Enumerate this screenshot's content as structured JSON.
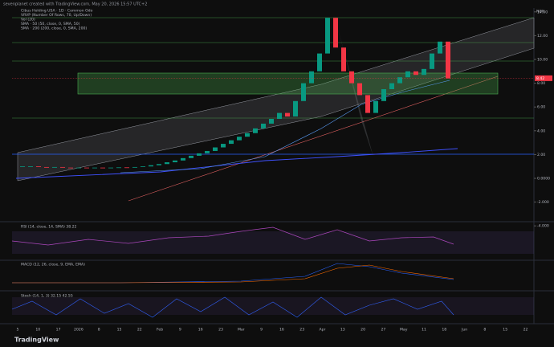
{
  "header": {
    "caption": "sevenplanet created with TradingView.com, May 20, 2026 15:57 UTC+2"
  },
  "main_pane": {
    "legend": [
      "Cibus Holding USA · 1D · Common Odo",
      "VRVP (Number Of Rows, 70, Up/Down)",
      "Vol (20)",
      "SMA · 50 (50, close, 0, SMA, 50)",
      "SMA · 200 (200, close, 0, SMA, 200)"
    ],
    "currency": "NOK",
    "price_ticks": [
      {
        "value": 14,
        "label": "14.00"
      },
      {
        "value": 12,
        "label": "12.00"
      },
      {
        "value": 10,
        "label": "10.00"
      },
      {
        "value": 8,
        "label": "8.00"
      },
      {
        "value": 6,
        "label": "6.00"
      },
      {
        "value": 4,
        "label": "4.00"
      },
      {
        "value": 2,
        "label": "2.00"
      },
      {
        "value": 0,
        "label": "0.0000"
      },
      {
        "value": -2,
        "label": "-2.000"
      },
      {
        "value": -4,
        "label": "-4.000"
      }
    ],
    "last_price": {
      "value": 8.42,
      "label": "8.42"
    },
    "open": [
      1.0,
      1.0,
      1.0,
      0.95,
      0.9,
      0.95,
      0.9,
      0.85,
      0.9,
      0.85,
      0.9,
      0.88,
      0.9,
      0.92,
      0.9,
      0.95,
      1.0,
      1.1,
      1.2,
      1.35,
      1.5,
      1.7,
      1.9,
      2.1,
      2.3,
      2.6,
      2.9,
      3.2,
      3.5,
      3.8,
      4.2,
      4.6,
      5.0,
      5.5,
      5.2,
      6.5,
      8.0,
      9.0,
      10.5,
      13.5,
      11.0,
      9.0,
      8.0,
      7.0,
      5.5,
      6.5,
      7.5,
      8.0,
      8.5,
      9.0,
      8.7,
      9.2,
      10.5,
      11.5
    ],
    "close": [
      1.0,
      1.0,
      0.95,
      0.9,
      0.95,
      0.9,
      0.85,
      0.9,
      0.85,
      0.9,
      0.88,
      0.9,
      0.92,
      0.9,
      0.95,
      1.0,
      1.1,
      1.2,
      1.35,
      1.5,
      1.7,
      1.9,
      2.1,
      2.3,
      2.6,
      2.9,
      3.2,
      3.5,
      3.8,
      4.2,
      4.6,
      5.0,
      5.5,
      5.2,
      6.5,
      8.0,
      9.0,
      10.5,
      13.5,
      11.0,
      9.0,
      8.0,
      7.0,
      5.5,
      6.5,
      7.5,
      8.0,
      8.5,
      9.0,
      8.7,
      9.2,
      10.5,
      11.5,
      8.4
    ],
    "up_color": "#089981",
    "down_color": "#f23645"
  },
  "rsi_pane": {
    "legend": "RSI (14, close, 14, SMA) 38.22"
  },
  "macd_pane": {
    "legend": "MACD (12, 26, close, 9, EMA, EMA)"
  },
  "stoch_pane": {
    "legend": "Stoch (14, 1, 3) 32.15 42.55"
  },
  "time_axis": [
    "5",
    "10",
    "17",
    "2026",
    "8",
    "15",
    "22",
    "Feb",
    "9",
    "16",
    "23",
    "Mar",
    "9",
    "16",
    "23",
    "Apr",
    "13",
    "20",
    "27",
    "May",
    "11",
    "18",
    "Jun",
    "8",
    "15",
    "22"
  ],
  "footer": {
    "logo": "TradingView"
  }
}
